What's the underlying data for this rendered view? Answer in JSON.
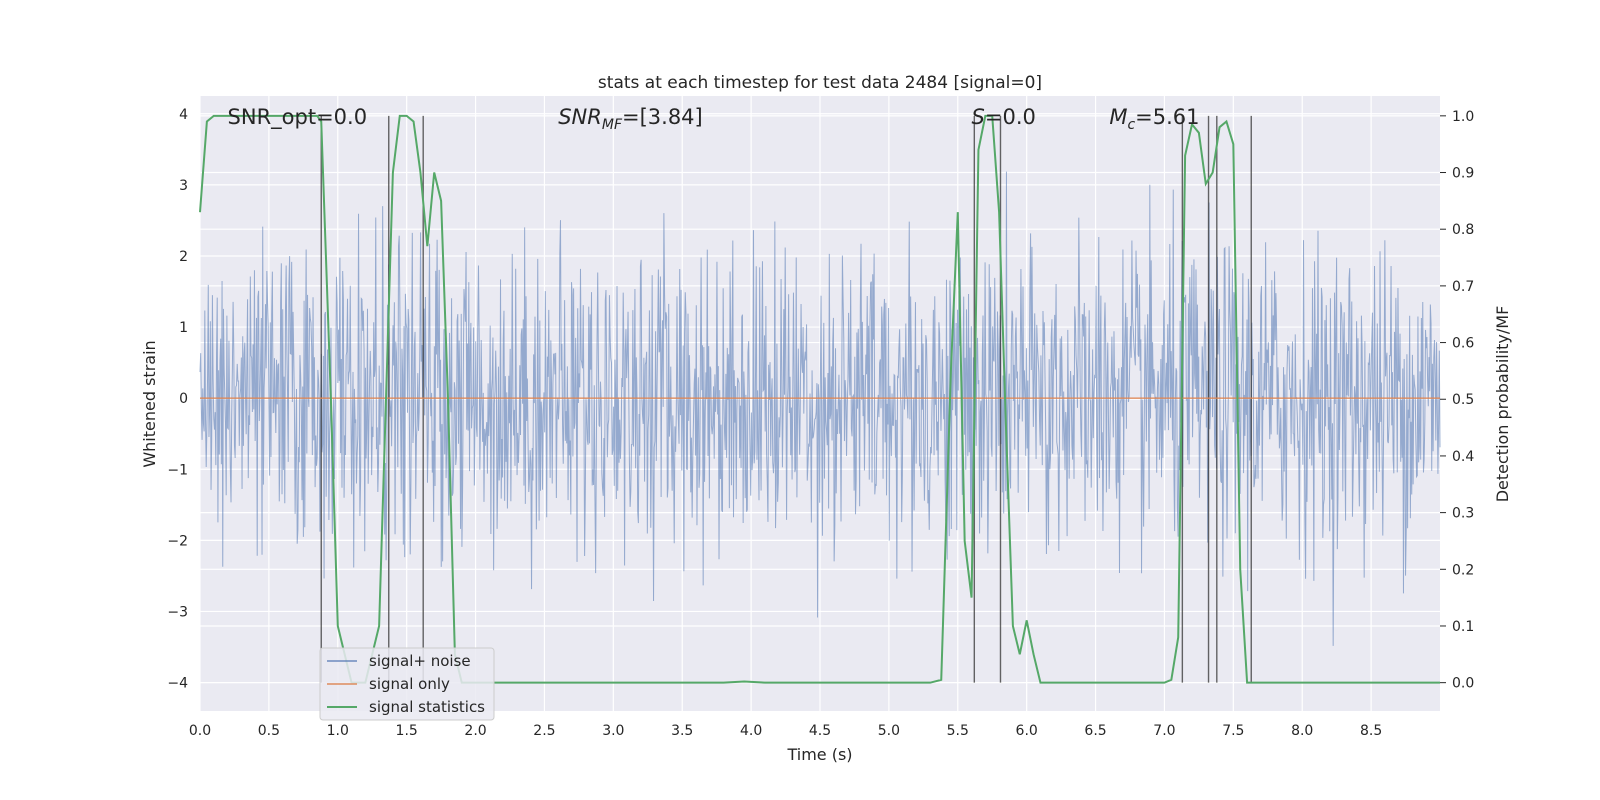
{
  "chart_data": {
    "type": "line",
    "title": "stats at each timestep for test data 2484 [signal=0]",
    "xlabel": "Time (s)",
    "ylabel_left": "Whitened strain",
    "ylabel_right": "Detection probability/MF",
    "xlim": [
      0,
      9
    ],
    "ylim_left": [
      -4.4,
      4.25
    ],
    "ylim_right": [
      -0.05,
      1.035
    ],
    "xticks": [
      0.0,
      0.5,
      1.0,
      1.5,
      2.0,
      2.5,
      3.0,
      3.5,
      4.0,
      4.5,
      5.0,
      5.5,
      6.0,
      6.5,
      7.0,
      7.5,
      8.0,
      8.5
    ],
    "xtick_labels": [
      "0.0",
      "0.5",
      "1.0",
      "1.5",
      "2.0",
      "2.5",
      "3.0",
      "3.5",
      "4.0",
      "4.5",
      "5.0",
      "5.5",
      "6.0",
      "6.5",
      "7.0",
      "7.5",
      "8.0",
      "8.5"
    ],
    "yticks_left": [
      -4,
      -3,
      -2,
      -1,
      0,
      1,
      2,
      3,
      4
    ],
    "ytick_labels_left": [
      "−4",
      "−3",
      "−2",
      "−1",
      "0",
      "1",
      "2",
      "3",
      "4"
    ],
    "yticks_right": [
      0.0,
      0.1,
      0.2,
      0.3,
      0.4,
      0.5,
      0.6,
      0.7,
      0.8,
      0.9,
      1.0
    ],
    "ytick_labels_right": [
      "0.0",
      "0.1",
      "0.2",
      "0.3",
      "0.4",
      "0.5",
      "0.6",
      "0.7",
      "0.8",
      "0.9",
      "1.0"
    ],
    "grid": true,
    "legend_position": "lower-left",
    "annotations": [
      {
        "x": 0.2,
        "text": "SNR_opt=0.0",
        "italic": false
      },
      {
        "x": 2.6,
        "text": "SNR_MF=[3.84]",
        "italic": true
      },
      {
        "x": 5.6,
        "text": "S=0.0",
        "italic": true
      },
      {
        "x": 6.6,
        "text": "M_c=5.61",
        "italic": true
      }
    ],
    "series": [
      {
        "name": "signal+ noise",
        "color": "#4c72b0",
        "kind": "noise",
        "axis": "left",
        "std": 1.05,
        "range": [
          -4.0,
          4.0
        ]
      },
      {
        "name": "signal only",
        "color": "#dd8452",
        "kind": "line",
        "axis": "left",
        "x": [
          0,
          9
        ],
        "y": [
          0,
          0
        ]
      },
      {
        "name": "signal statistics",
        "color": "#55a868",
        "kind": "line",
        "axis": "right",
        "x": [
          0.0,
          0.05,
          0.1,
          0.2,
          0.3,
          0.85,
          0.88,
          0.95,
          1.0,
          1.1,
          1.2,
          1.3,
          1.35,
          1.4,
          1.45,
          1.5,
          1.55,
          1.6,
          1.65,
          1.7,
          1.75,
          1.8,
          1.85,
          1.9,
          2.0,
          2.5,
          3.0,
          3.5,
          3.8,
          3.95,
          4.1,
          4.5,
          5.0,
          5.3,
          5.38,
          5.45,
          5.5,
          5.55,
          5.6,
          5.65,
          5.7,
          5.75,
          5.8,
          5.85,
          5.9,
          5.95,
          6.0,
          6.05,
          6.1,
          6.15,
          6.2,
          6.3,
          6.5,
          7.0,
          7.05,
          7.1,
          7.15,
          7.2,
          7.25,
          7.3,
          7.35,
          7.4,
          7.45,
          7.5,
          7.55,
          7.6,
          7.65,
          7.7,
          7.75,
          7.8,
          8.0,
          8.2,
          8.5,
          9.0
        ],
        "y": [
          0.83,
          0.99,
          1.0,
          1.0,
          1.0,
          1.0,
          0.99,
          0.5,
          0.1,
          0.0,
          0.0,
          0.1,
          0.5,
          0.9,
          1.0,
          1.0,
          0.99,
          0.9,
          0.77,
          0.9,
          0.85,
          0.5,
          0.05,
          0.0,
          0.0,
          0.0,
          0.0,
          0.0,
          0.0,
          0.002,
          0.0,
          0.0,
          0.0,
          0.0,
          0.005,
          0.55,
          0.83,
          0.25,
          0.15,
          0.94,
          1.0,
          1.0,
          0.83,
          0.45,
          0.1,
          0.05,
          0.11,
          0.05,
          0.0,
          0.0,
          0.0,
          0.0,
          0.0,
          0.0,
          0.005,
          0.08,
          0.93,
          0.985,
          0.97,
          0.88,
          0.9,
          0.98,
          0.99,
          0.95,
          0.2,
          0.0,
          0.0,
          0.0,
          0.0,
          0.0,
          0.0,
          0.0,
          0.0,
          0.0
        ]
      }
    ],
    "vertical_lines": [
      0.88,
      1.37,
      1.62,
      5.62,
      5.81,
      7.13,
      7.32,
      7.38,
      7.63
    ]
  }
}
